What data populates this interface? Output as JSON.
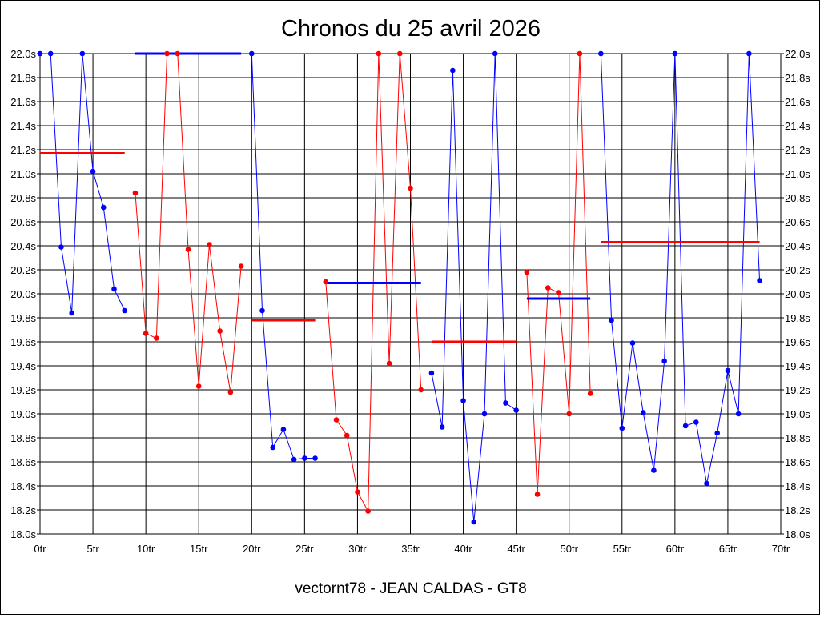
{
  "chart_data": {
    "type": "line",
    "title": "Chronos du 25 avril 2026",
    "xlabel": "vectornt78 - JEAN CALDAS - GT8",
    "ylabel": "",
    "xlim": [
      0,
      70
    ],
    "ylim": [
      18.0,
      22.0
    ],
    "grid": true,
    "y_ticks": [
      "18.0s",
      "18.2s",
      "18.4s",
      "18.6s",
      "18.8s",
      "19.0s",
      "19.2s",
      "19.4s",
      "19.6s",
      "19.8s",
      "20.0s",
      "20.2s",
      "20.4s",
      "20.6s",
      "20.8s",
      "21.0s",
      "21.2s",
      "21.4s",
      "21.6s",
      "21.8s",
      "22.0s"
    ],
    "x_ticks": [
      "0tr",
      "5tr",
      "10tr",
      "15tr",
      "20tr",
      "25tr",
      "30tr",
      "35tr",
      "40tr",
      "45tr",
      "50tr",
      "55tr",
      "60tr",
      "65tr",
      "70tr"
    ],
    "colors": {
      "blue": "#0000ff",
      "red": "#ff0000"
    },
    "series": [
      {
        "color": "blue",
        "x": [
          0,
          1,
          2,
          3,
          4,
          5,
          6,
          7,
          8
        ],
        "y": [
          22.0,
          22.0,
          20.39,
          19.84,
          22.0,
          21.02,
          20.72,
          20.04,
          19.86
        ],
        "mean": 22.0,
        "mean_range": [
          9,
          19
        ]
      },
      {
        "color": "red",
        "x": [
          9,
          10,
          11,
          12,
          13,
          14,
          15,
          16,
          17,
          18,
          19
        ],
        "y": [
          20.84,
          19.67,
          19.63,
          22.0,
          22.0,
          20.37,
          19.23,
          20.41,
          19.69,
          19.18,
          20.23
        ],
        "mean": 21.17,
        "mean_range": [
          0,
          8
        ]
      },
      {
        "color": "blue",
        "x": [
          20,
          21,
          22,
          23,
          24,
          25,
          26
        ],
        "y": [
          22.0,
          19.86,
          18.72,
          18.87,
          18.62,
          18.63,
          18.63
        ],
        "mean": 20.09,
        "mean_range": [
          27,
          36
        ]
      },
      {
        "color": "red",
        "x": [
          27,
          28,
          29,
          30,
          31,
          32,
          33,
          34,
          35,
          36
        ],
        "y": [
          20.1,
          18.95,
          18.82,
          18.35,
          18.19,
          22.0,
          19.42,
          22.0,
          20.88,
          19.2
        ],
        "mean": 19.78,
        "mean_range": [
          20,
          26
        ]
      },
      {
        "color": "blue",
        "x": [
          37,
          38,
          39,
          40,
          41,
          42,
          43,
          44,
          45
        ],
        "y": [
          19.34,
          18.89,
          21.86,
          19.11,
          18.1,
          19.0,
          22.0,
          19.09,
          19.03
        ],
        "mean": 19.96,
        "mean_range": [
          46,
          52
        ]
      },
      {
        "color": "red",
        "x": [
          46,
          47,
          48,
          49,
          50,
          51,
          52
        ],
        "y": [
          20.18,
          18.33,
          20.05,
          20.01,
          19.0,
          22.0,
          19.17
        ],
        "mean": 19.6,
        "mean_range": [
          37,
          45
        ]
      },
      {
        "color": "blue",
        "x": [
          53,
          54,
          55,
          56,
          57,
          58,
          59,
          60,
          61,
          62,
          63,
          64,
          65,
          66,
          67,
          68
        ],
        "y": [
          22.0,
          19.78,
          18.88,
          19.59,
          19.01,
          18.53,
          19.44,
          22.0,
          18.9,
          18.93,
          18.42,
          18.84,
          19.36,
          19.0,
          22.0,
          20.11
        ]
      },
      {
        "color": "red",
        "mean": 20.43,
        "mean_range": [
          53,
          68
        ]
      }
    ]
  }
}
